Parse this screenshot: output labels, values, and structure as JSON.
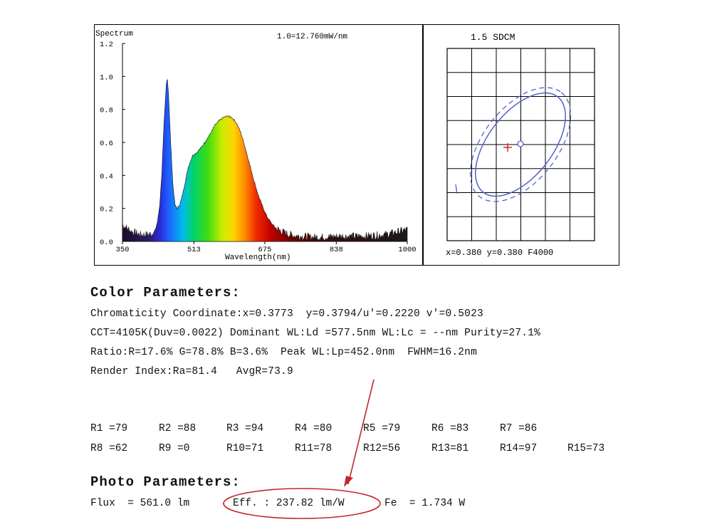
{
  "spectrum_chart": {
    "title": "Spectrum",
    "scale_note": "1.0=12.760mW/nm",
    "xlabel": "Wavelength(nm)",
    "y_ticks": [
      "0.0",
      "0.2",
      "0.4",
      "0.6",
      "0.8",
      "1.0",
      "1.2"
    ],
    "x_ticks": [
      "350",
      "513",
      "675",
      "838",
      "1000"
    ]
  },
  "chart_data": {
    "type": "area",
    "title": "Spectrum",
    "xlabel": "Wavelength(nm)",
    "ylabel": "",
    "xlim": [
      350,
      1000
    ],
    "ylim": [
      0,
      1.2
    ],
    "grid": false,
    "x": [
      350,
      370,
      390,
      410,
      420,
      425,
      430,
      435,
      440,
      445,
      450,
      452,
      455,
      460,
      465,
      470,
      475,
      480,
      485,
      490,
      500,
      510,
      520,
      530,
      540,
      550,
      560,
      570,
      580,
      590,
      600,
      610,
      620,
      630,
      640,
      650,
      660,
      670,
      680,
      690,
      700,
      720,
      740,
      760,
      780,
      800,
      850,
      900,
      950,
      1000
    ],
    "y": [
      0.1,
      0.06,
      0.04,
      0.04,
      0.05,
      0.07,
      0.12,
      0.22,
      0.42,
      0.72,
      0.95,
      1.0,
      0.9,
      0.6,
      0.35,
      0.22,
      0.2,
      0.22,
      0.26,
      0.32,
      0.45,
      0.52,
      0.54,
      0.57,
      0.61,
      0.65,
      0.7,
      0.73,
      0.75,
      0.76,
      0.75,
      0.72,
      0.66,
      0.57,
      0.47,
      0.37,
      0.28,
      0.21,
      0.15,
      0.11,
      0.08,
      0.05,
      0.035,
      0.03,
      0.025,
      0.025,
      0.03,
      0.03,
      0.04,
      0.07
    ]
  },
  "sdcm_chart": {
    "title": "1.5 SDCM",
    "readout": "x=0.380 y=0.380 F4000"
  },
  "color_params": {
    "heading": "Color Parameters:",
    "lines": [
      "Chromaticity Coordinate:x=0.3773  y=0.3794/u'=0.2220 v'=0.5023",
      "CCT=4105K(Duv=0.0022) Dominant WL:Ld =577.5nm WL:Lc = --nm Purity=27.1%",
      "Ratio:R=17.6% G=78.8% B=3.6%  Peak WL:Lp=452.0nm  FWHM=16.2nm",
      "Render Index:Ra=81.4   AvgR=73.9"
    ],
    "r_row1": [
      "R1 =79",
      "R2 =88",
      "R3 =94",
      "R4 =80",
      "R5 =79",
      "R6 =83",
      "R7 =86"
    ],
    "r_row2": [
      "R8 =62",
      "R9 =0",
      "R10=71",
      "R11=78",
      "R12=56",
      "R13=81",
      "R14=97",
      "R15=73"
    ]
  },
  "photo_params": {
    "heading": "Photo Parameters:",
    "flux": "Flux  = 561.0 lm",
    "eff": "Eff. : 237.82 lm/W",
    "fe": "Fe  = 1.734 W"
  },
  "colors": {
    "annotation_red": "#c0272d",
    "ellipse_blue": "#5560c8",
    "marker_red": "#e02020"
  }
}
